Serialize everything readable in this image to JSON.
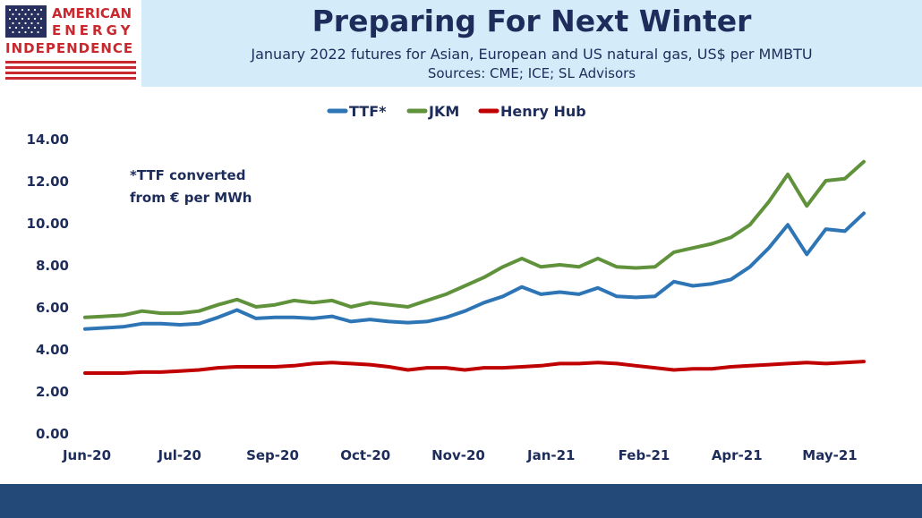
{
  "logo": {
    "line1": "AMERICAN",
    "line2": "ENERGY",
    "line3": "INDEPENDENCE"
  },
  "header": {
    "title": "Preparing For Next Winter",
    "subtitle": "January 2022 futures for Asian, European and US natural gas, US$ per MMBTU",
    "sources": "Sources: CME; ICE; SL Advisors"
  },
  "colors": {
    "header_bg": "#d4ecf9",
    "title": "#1d2c5a",
    "logo_red": "#c8282e",
    "logo_blue": "#27305f",
    "footer": "#234978",
    "axis_text": "#1d2c5a"
  },
  "chart_data": {
    "type": "line",
    "title": "",
    "xlabel": "",
    "ylabel": "",
    "ylim": [
      0,
      14
    ],
    "y_ticks": [
      "0.00",
      "2.00",
      "4.00",
      "6.00",
      "8.00",
      "10.00",
      "12.00",
      "14.00"
    ],
    "x_ticks": [
      "Jun-20",
      "Jul-20",
      "Sep-20",
      "Oct-20",
      "Nov-20",
      "Jan-21",
      "Feb-21",
      "Apr-21",
      "May-21"
    ],
    "legend_position": "top-center",
    "grid": false,
    "annotation": [
      "*TTF converted",
      "from € per MWh"
    ],
    "x": [
      "Jun-20",
      "",
      "",
      "",
      "Jul-20",
      "",
      "",
      "",
      "",
      "Sep-20",
      "",
      "",
      "",
      "",
      "Oct-20",
      "",
      "",
      "",
      "",
      "Nov-20",
      "",
      "",
      "",
      "",
      "Jan-21",
      "",
      "",
      "",
      "",
      "Feb-21",
      "",
      "",
      "",
      "",
      "Apr-21",
      "",
      "",
      "",
      "",
      "May-21",
      "",
      ""
    ],
    "series": [
      {
        "name": "TTF*",
        "color": "#2e75b6",
        "values": [
          4.95,
          5.0,
          5.05,
          5.2,
          5.2,
          5.15,
          5.2,
          5.5,
          5.85,
          5.45,
          5.5,
          5.5,
          5.45,
          5.55,
          5.3,
          5.4,
          5.3,
          5.25,
          5.3,
          5.5,
          5.8,
          6.2,
          6.5,
          6.95,
          6.6,
          6.7,
          6.6,
          6.9,
          6.5,
          6.45,
          6.5,
          7.2,
          7.0,
          7.1,
          7.3,
          7.9,
          8.8,
          9.9,
          8.5,
          9.7,
          9.6,
          10.45
        ]
      },
      {
        "name": "JKM",
        "color": "#5f923b",
        "values": [
          5.5,
          5.55,
          5.6,
          5.8,
          5.7,
          5.7,
          5.8,
          6.1,
          6.35,
          6.0,
          6.1,
          6.3,
          6.2,
          6.3,
          6.0,
          6.2,
          6.1,
          6.0,
          6.3,
          6.6,
          7.0,
          7.4,
          7.9,
          8.3,
          7.9,
          8.0,
          7.9,
          8.3,
          7.9,
          7.85,
          7.9,
          8.6,
          8.8,
          9.0,
          9.3,
          9.9,
          11.0,
          12.3,
          10.8,
          12.0,
          12.1,
          12.9
        ]
      },
      {
        "name": "Henry Hub",
        "color": "#c00000",
        "values": [
          2.85,
          2.85,
          2.85,
          2.9,
          2.9,
          2.95,
          3.0,
          3.1,
          3.15,
          3.15,
          3.15,
          3.2,
          3.3,
          3.35,
          3.3,
          3.25,
          3.15,
          3.0,
          3.1,
          3.1,
          3.0,
          3.1,
          3.1,
          3.15,
          3.2,
          3.3,
          3.3,
          3.35,
          3.3,
          3.2,
          3.1,
          3.0,
          3.05,
          3.05,
          3.15,
          3.2,
          3.25,
          3.3,
          3.35,
          3.3,
          3.35,
          3.4
        ]
      }
    ]
  }
}
